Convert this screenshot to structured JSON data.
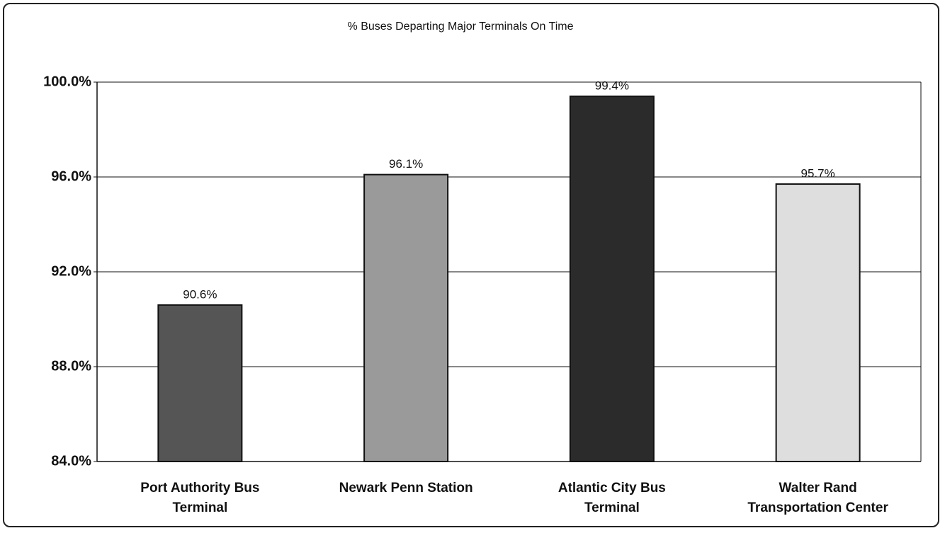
{
  "chart_data": {
    "type": "bar",
    "title": "% Buses Departing Major Terminals On Time",
    "categories": [
      "Port Authority Bus Terminal",
      "Newark Penn Station",
      "Atlantic City Bus Terminal",
      "Walter Rand Transportation Center"
    ],
    "values": [
      90.6,
      96.1,
      99.4,
      95.7
    ],
    "value_labels": [
      "90.6%",
      "96.1%",
      "99.4%",
      "95.7%"
    ],
    "colors": [
      "#555555",
      "#9a9a9a",
      "#2b2b2b",
      "#dedede"
    ],
    "ylim": [
      84,
      100
    ],
    "yticks": [
      {
        "value": 84,
        "label": "84.0%"
      },
      {
        "value": 88,
        "label": "88.0%"
      },
      {
        "value": 92,
        "label": "92.0%"
      },
      {
        "value": 96,
        "label": "96.0%"
      },
      {
        "value": 100,
        "label": "100.0%"
      }
    ],
    "grid": true
  }
}
